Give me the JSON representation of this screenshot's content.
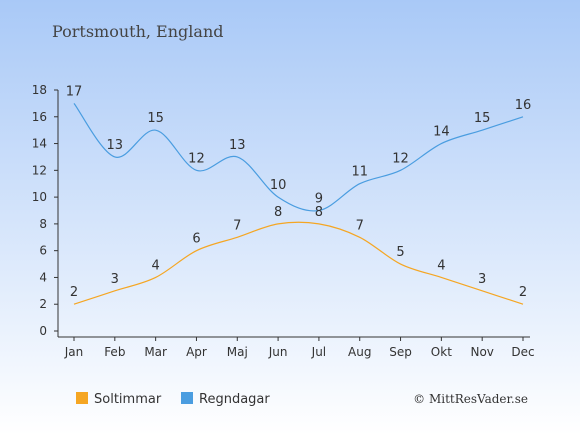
{
  "location": "Portsmouth, England",
  "watermark": "© MittResVader.se",
  "colors": {
    "bg_top": "#a9c9f7",
    "bg_bottom": "#ffffff",
    "sun": "#f5a623",
    "rain": "#4a9de0",
    "text": "#333333",
    "title": "#444444"
  },
  "chart_data": {
    "type": "line",
    "categories": [
      "Jan",
      "Feb",
      "Mar",
      "Apr",
      "Maj",
      "Jun",
      "Jul",
      "Aug",
      "Sep",
      "Okt",
      "Nov",
      "Dec"
    ],
    "ylim": [
      0,
      18
    ],
    "yticks": [
      0,
      2,
      4,
      6,
      8,
      10,
      12,
      14,
      16,
      18
    ],
    "grid": false,
    "legend_position": "bottom-left",
    "series": [
      {
        "name": "Soltimmar",
        "color": "#f5a623",
        "values": [
          2,
          3,
          4,
          6,
          7,
          8,
          8,
          7,
          5,
          4,
          3,
          2
        ]
      },
      {
        "name": "Regndagar",
        "color": "#4a9de0",
        "values": [
          17,
          13,
          15,
          12,
          13,
          10,
          9,
          11,
          12,
          14,
          15,
          16
        ]
      }
    ]
  }
}
